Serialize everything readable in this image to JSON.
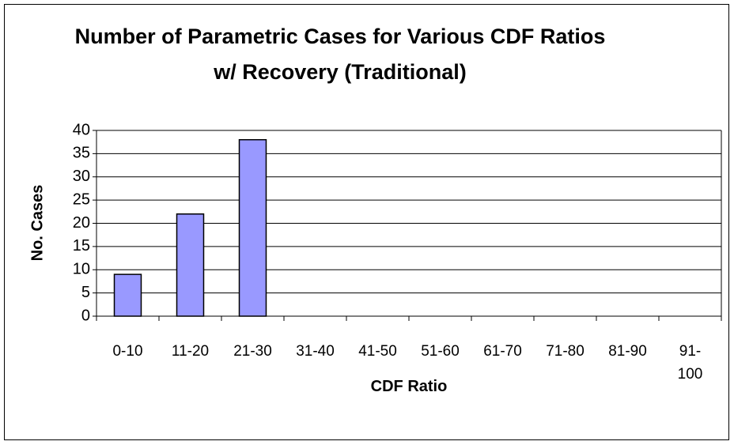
{
  "chart_data": {
    "type": "bar",
    "title": "Number of Parametric Cases for Various CDF Ratios w/ Recovery (Traditional)",
    "x_label": "CDF Ratio",
    "y_label": "No. Cases",
    "categories": [
      "0-10",
      "11-20",
      "21-30",
      "31-40",
      "41-50",
      "51-60",
      "61-70",
      "71-80",
      "81-90",
      "91-100"
    ],
    "values": [
      9,
      22,
      38,
      0,
      0,
      0,
      0,
      0,
      0,
      0
    ],
    "color": "#9999ff",
    "ylim": [
      0,
      40
    ],
    "yticks": [
      0,
      5,
      10,
      15,
      20,
      25,
      30,
      35,
      40
    ],
    "grid": true
  }
}
